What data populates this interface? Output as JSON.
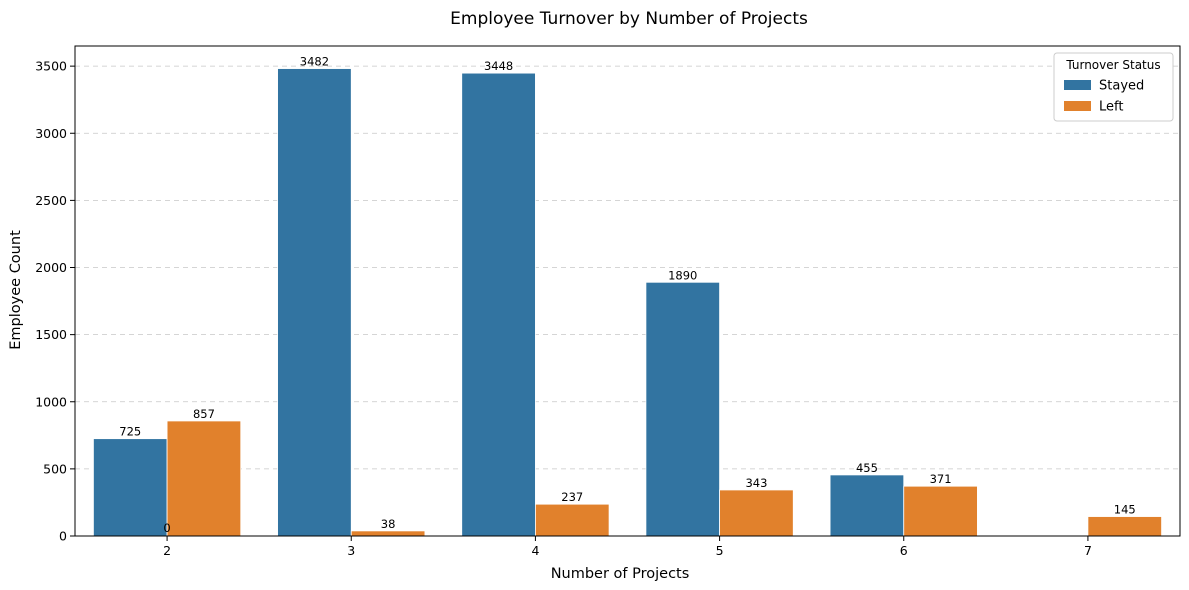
{
  "chart_data": {
    "type": "bar",
    "title": "Employee Turnover by Number of Projects",
    "xlabel": "Number of Projects",
    "ylabel": "Employee Count",
    "categories": [
      "2",
      "3",
      "4",
      "5",
      "6",
      "7"
    ],
    "series": [
      {
        "name": "Stayed",
        "color": "#3274a1",
        "values": [
          725,
          3482,
          3448,
          1890,
          455,
          0
        ]
      },
      {
        "name": "Left",
        "color": "#e1812c",
        "values": [
          857,
          38,
          237,
          343,
          371,
          145
        ]
      }
    ],
    "ylim": [
      0,
      3650
    ],
    "yticks": [
      0,
      500,
      1000,
      1500,
      2000,
      2500,
      3000,
      3500
    ],
    "grid": "y-dashed",
    "legend": {
      "title": "Turnover Status",
      "placement": "top-right"
    }
  }
}
